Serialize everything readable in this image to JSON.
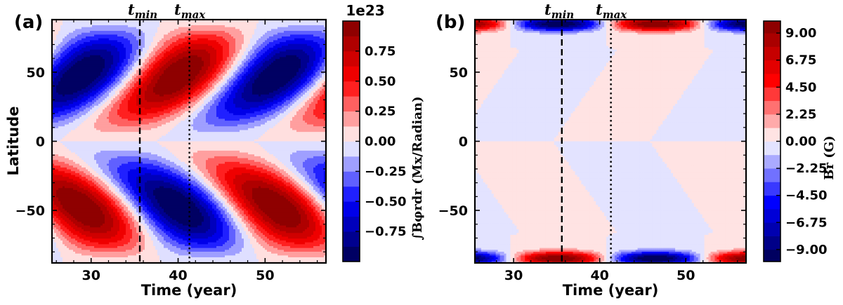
{
  "chart_data": [
    {
      "panel_label": "(a)",
      "type": "heatmap",
      "quantity": "toroidal",
      "xlabel": "Time (year)",
      "ylabel": "Latitude",
      "xlim": [
        25.5,
        57
      ],
      "ylim": [
        -88,
        88
      ],
      "xticks": [
        30,
        40,
        50
      ],
      "yticks": [
        -50,
        0,
        50
      ],
      "ytick_labels": [
        "−50",
        "0",
        "50"
      ],
      "vertical_markers": [
        {
          "label": "tmin",
          "base": "t",
          "sub": "min",
          "x": 35.6,
          "style": "dashed"
        },
        {
          "label": "tmax",
          "base": "t",
          "sub": "max",
          "x": 41.3,
          "style": "dotted"
        }
      ],
      "colorbar": {
        "title": "∫Bφrdr (Mx/Radian)",
        "offset_label": "1e23",
        "levels": [
          -1.0,
          -0.875,
          -0.75,
          -0.625,
          -0.5,
          -0.375,
          -0.25,
          -0.125,
          0.0,
          0.125,
          0.25,
          0.375,
          0.5,
          0.625,
          0.75,
          0.875,
          1.0
        ],
        "tick_values": [
          0.75,
          0.5,
          0.25,
          0.0,
          -0.25,
          -0.5,
          -0.75
        ],
        "tick_labels": [
          "0.75",
          "0.50",
          "0.25",
          "0.00",
          "−0.25",
          "−0.50",
          "−0.75"
        ],
        "colormap": "seismic"
      }
    },
    {
      "panel_label": "(b)",
      "type": "heatmap",
      "quantity": "radial",
      "xlabel": "Time (year)",
      "ylabel": "",
      "xlim": [
        25.5,
        57
      ],
      "ylim": [
        -88,
        88
      ],
      "xticks": [
        30,
        40,
        50
      ],
      "yticks": [
        -50,
        0,
        50
      ],
      "ytick_labels": [
        "−50",
        "0",
        "50"
      ],
      "vertical_markers": [
        {
          "label": "tmin",
          "base": "t",
          "sub": "min",
          "x": 35.6,
          "style": "dashed"
        },
        {
          "label": "tmax",
          "base": "t",
          "sub": "max",
          "x": 41.3,
          "style": "dotted"
        }
      ],
      "colorbar": {
        "title": "Br (G)",
        "offset_label": "",
        "levels": [
          -10.0,
          -9.0,
          -7.875,
          -6.75,
          -5.625,
          -4.5,
          -3.375,
          -2.25,
          -1.125,
          0.0,
          1.125,
          2.25,
          3.375,
          4.5,
          5.625,
          6.75,
          7.875,
          9.0,
          10.0
        ],
        "tick_values": [
          9.0,
          6.75,
          4.5,
          2.25,
          0.0,
          -2.25,
          -4.5,
          -6.75,
          -9.0
        ],
        "tick_labels": [
          "9.00",
          "6.75",
          "4.50",
          "2.25",
          "0.00",
          "−2.25",
          "−4.50",
          "−6.75",
          "−9.00"
        ],
        "colormap": "seismic"
      }
    }
  ]
}
